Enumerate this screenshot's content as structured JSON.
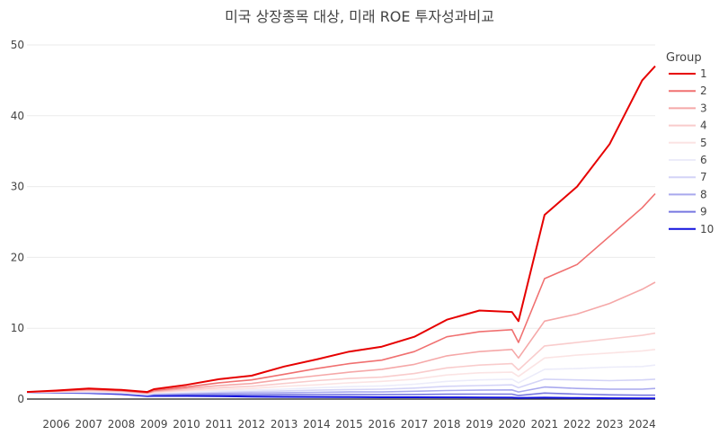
{
  "chart_data": {
    "type": "line",
    "title": "미국 상장종목 대상, 미래 ROE 투자성과비교",
    "xlabel": "",
    "ylabel": "",
    "xlim": [
      2005.1,
      2024.4
    ],
    "ylim": [
      0,
      50
    ],
    "x_ticks": [
      "2006",
      "2007",
      "2008",
      "2009",
      "2010",
      "2011",
      "2012",
      "2013",
      "2014",
      "2015",
      "2016",
      "2017",
      "2018",
      "2019",
      "2020",
      "2021",
      "2022",
      "2023",
      "2024"
    ],
    "y_ticks": [
      "0",
      "10",
      "20",
      "30",
      "40",
      "50"
    ],
    "grid": "horizontal",
    "legend": {
      "title": "Group",
      "position": "right"
    },
    "x": [
      2005.1,
      2006,
      2007,
      2008,
      2008.8,
      2009,
      2010,
      2011,
      2012,
      2013,
      2014,
      2015,
      2016,
      2017,
      2018,
      2019,
      2020,
      2020.2,
      2021,
      2022,
      2023,
      2024,
      2024.4
    ],
    "series": [
      {
        "name": "1",
        "color": "#e60000",
        "values": [
          1.0,
          1.2,
          1.5,
          1.3,
          1.0,
          1.4,
          2.0,
          2.8,
          3.3,
          4.6,
          5.6,
          6.7,
          7.4,
          8.8,
          11.2,
          12.5,
          12.3,
          11.0,
          26.0,
          30.0,
          36.0,
          45.0,
          47.0
        ]
      },
      {
        "name": "2",
        "color": "#f07070",
        "values": [
          1.0,
          1.15,
          1.4,
          1.2,
          0.9,
          1.2,
          1.7,
          2.3,
          2.7,
          3.5,
          4.3,
          5.0,
          5.5,
          6.7,
          8.8,
          9.5,
          9.8,
          8.0,
          17.0,
          19.0,
          23.0,
          27.0,
          29.0
        ]
      },
      {
        "name": "3",
        "color": "#f5a8a8",
        "values": [
          1.0,
          1.1,
          1.3,
          1.15,
          0.85,
          1.1,
          1.5,
          1.9,
          2.2,
          2.8,
          3.3,
          3.8,
          4.2,
          4.9,
          6.1,
          6.7,
          7.0,
          5.8,
          11.0,
          12.0,
          13.5,
          15.5,
          16.5
        ]
      },
      {
        "name": "4",
        "color": "#f9cccc",
        "values": [
          1.0,
          1.05,
          1.2,
          1.1,
          0.8,
          1.0,
          1.3,
          1.6,
          1.8,
          2.2,
          2.6,
          2.9,
          3.1,
          3.6,
          4.4,
          4.8,
          5.0,
          4.1,
          7.5,
          8.0,
          8.5,
          9.0,
          9.3
        ]
      },
      {
        "name": "5",
        "color": "#fbe4e4",
        "values": [
          1.0,
          1.02,
          1.1,
          1.0,
          0.75,
          0.9,
          1.15,
          1.35,
          1.5,
          1.8,
          2.0,
          2.3,
          2.5,
          2.8,
          3.4,
          3.7,
          3.8,
          3.2,
          5.8,
          6.2,
          6.5,
          6.8,
          7.0
        ]
      },
      {
        "name": "6",
        "color": "#ececfa",
        "values": [
          1.0,
          1.0,
          1.05,
          0.95,
          0.7,
          0.85,
          1.0,
          1.15,
          1.25,
          1.4,
          1.6,
          1.75,
          1.85,
          2.1,
          2.5,
          2.7,
          2.8,
          2.3,
          4.2,
          4.3,
          4.5,
          4.6,
          4.8
        ]
      },
      {
        "name": "7",
        "color": "#d4d4f7",
        "values": [
          1.0,
          0.98,
          1.0,
          0.9,
          0.65,
          0.8,
          0.9,
          1.0,
          1.05,
          1.15,
          1.25,
          1.35,
          1.4,
          1.55,
          1.8,
          1.9,
          2.0,
          1.6,
          2.8,
          2.7,
          2.6,
          2.7,
          2.8
        ]
      },
      {
        "name": "8",
        "color": "#a9a9ee",
        "values": [
          1.0,
          0.95,
          0.95,
          0.85,
          0.6,
          0.75,
          0.8,
          0.85,
          0.85,
          0.9,
          0.95,
          1.0,
          1.0,
          1.1,
          1.2,
          1.25,
          1.3,
          1.0,
          1.7,
          1.5,
          1.4,
          1.4,
          1.5
        ]
      },
      {
        "name": "9",
        "color": "#7777e0",
        "values": [
          1.0,
          0.92,
          0.9,
          0.78,
          0.5,
          0.6,
          0.65,
          0.65,
          0.6,
          0.62,
          0.63,
          0.65,
          0.62,
          0.65,
          0.68,
          0.7,
          0.7,
          0.5,
          0.85,
          0.7,
          0.6,
          0.55,
          0.55
        ]
      },
      {
        "name": "10",
        "color": "#1010dd",
        "values": [
          1.0,
          0.9,
          0.85,
          0.7,
          0.4,
          0.45,
          0.45,
          0.4,
          0.35,
          0.32,
          0.3,
          0.28,
          0.26,
          0.25,
          0.24,
          0.22,
          0.2,
          0.15,
          0.2,
          0.15,
          0.12,
          0.1,
          0.1
        ]
      }
    ]
  }
}
